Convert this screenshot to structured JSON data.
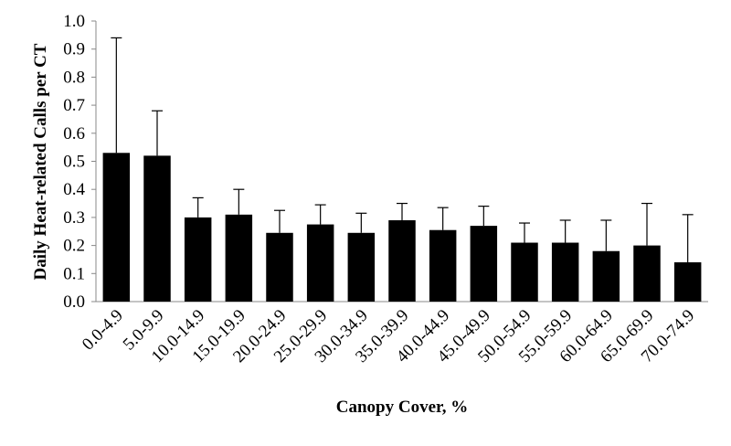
{
  "chart_data": {
    "type": "bar",
    "x_label": "Canopy Cover, %",
    "y_label": "Daily Heat-related Calls per CT",
    "categories": [
      "0.0-4.9",
      "5.0-9.9",
      "10.0-14.9",
      "15.0-19.9",
      "20.0-24.9",
      "25.0-29.9",
      "30.0-34.9",
      "35.0-39.9",
      "40.0-44.9",
      "45.0-49.9",
      "50.0-54.9",
      "55.0-59.9",
      "60.0-64.9",
      "65.0-69.9",
      "70.0-74.9"
    ],
    "values": [
      0.53,
      0.52,
      0.3,
      0.31,
      0.245,
      0.275,
      0.245,
      0.29,
      0.255,
      0.27,
      0.21,
      0.21,
      0.18,
      0.2,
      0.14
    ],
    "errors": [
      0.41,
      0.16,
      0.07,
      0.09,
      0.08,
      0.07,
      0.07,
      0.06,
      0.08,
      0.07,
      0.07,
      0.08,
      0.11,
      0.15,
      0.17
    ],
    "color": "#000000",
    "ylim": [
      0,
      1
    ],
    "yticks": [
      {
        "value": 0,
        "label": "0.0"
      },
      0.1,
      0.2,
      0.3,
      0.4,
      0.5,
      0.6,
      0.7,
      0.8,
      0.9,
      {
        "value": 1,
        "label": "1.0"
      }
    ]
  }
}
